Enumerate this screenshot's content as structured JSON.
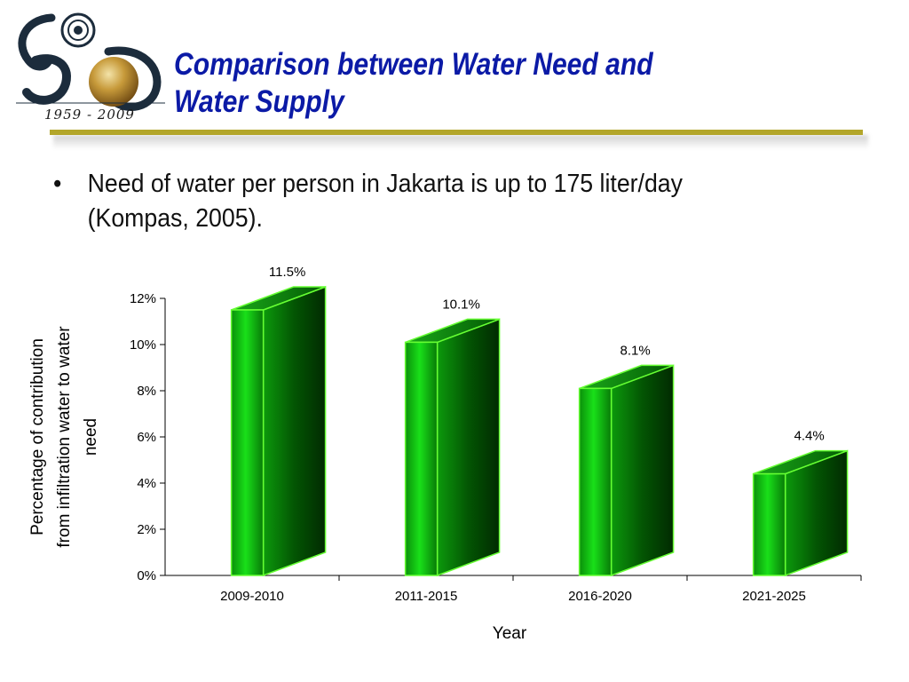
{
  "header": {
    "title": "Comparison between Water Need and Water Supply",
    "logo_years": "1959 - 2009"
  },
  "bullets": [
    {
      "symbol": "•",
      "text": "Need of water per person in Jakarta is up to 175 liter/day (Kompas, 2005)."
    }
  ],
  "chart_data": {
    "type": "bar",
    "style": "3d",
    "categories": [
      "2009-2010",
      "2011-2015",
      "2016-2020",
      "2021-2025"
    ],
    "values": [
      11.5,
      10.1,
      8.1,
      4.4
    ],
    "data_labels": [
      "11.5%",
      "10.1%",
      "8.1%",
      "4.4%"
    ],
    "xlabel": "Year",
    "ylabel": "Percentage of contribution from infiltration water to water need",
    "ylim": [
      0,
      12
    ],
    "yticks": [
      "0%",
      "2%",
      "4%",
      "6%",
      "8%",
      "10%",
      "12%"
    ],
    "grid": false,
    "legend": "none",
    "colors": {
      "bar": "#00c800",
      "bar_dark": "#003a00",
      "bar_edge": "#66ff33",
      "title": "#0b1aa6",
      "rule": "#b3a62a"
    }
  }
}
